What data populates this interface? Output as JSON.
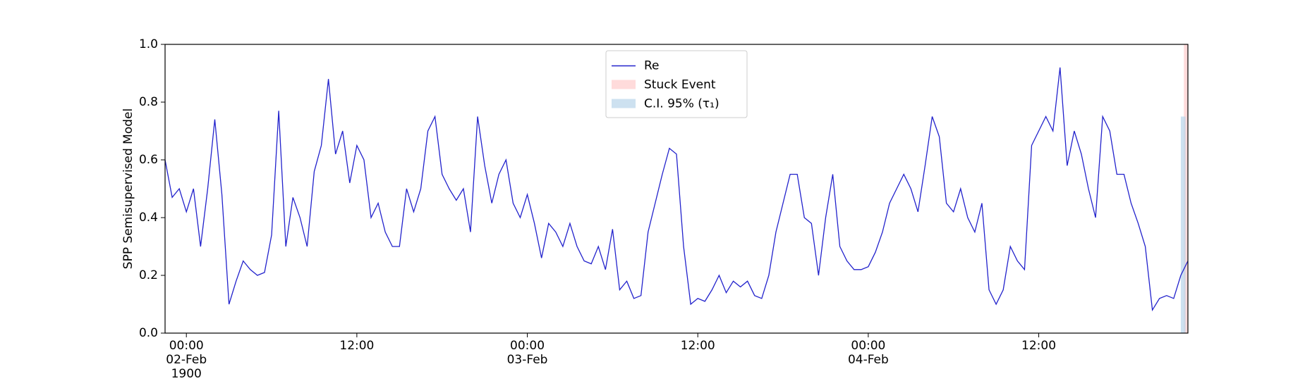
{
  "chart_data": {
    "type": "line",
    "ylabel": "SPP Semisupervised Model",
    "x": [
      "1900-02-01 22:30",
      "1900-02-01 23:00",
      "1900-02-01 23:30",
      "1900-02-02 00:00",
      "1900-02-02 00:30",
      "1900-02-02 01:00",
      "1900-02-02 01:30",
      "1900-02-02 02:00",
      "1900-02-02 02:30",
      "1900-02-02 03:00",
      "1900-02-02 03:30",
      "1900-02-02 04:00",
      "1900-02-02 04:30",
      "1900-02-02 05:00",
      "1900-02-02 05:30",
      "1900-02-02 06:00",
      "1900-02-02 06:30",
      "1900-02-02 07:00",
      "1900-02-02 07:30",
      "1900-02-02 08:00",
      "1900-02-02 08:30",
      "1900-02-02 09:00",
      "1900-02-02 09:30",
      "1900-02-02 10:00",
      "1900-02-02 10:30",
      "1900-02-02 11:00",
      "1900-02-02 11:30",
      "1900-02-02 12:00",
      "1900-02-02 12:30",
      "1900-02-02 13:00",
      "1900-02-02 13:30",
      "1900-02-02 14:00",
      "1900-02-02 14:30",
      "1900-02-02 15:00",
      "1900-02-02 15:30",
      "1900-02-02 16:00",
      "1900-02-02 16:30",
      "1900-02-02 17:00",
      "1900-02-02 17:30",
      "1900-02-02 18:00",
      "1900-02-02 18:30",
      "1900-02-02 19:00",
      "1900-02-02 19:30",
      "1900-02-02 20:00",
      "1900-02-02 20:30",
      "1900-02-02 21:00",
      "1900-02-02 21:30",
      "1900-02-02 22:00",
      "1900-02-02 22:30",
      "1900-02-02 23:00",
      "1900-02-02 23:30",
      "1900-02-03 00:00",
      "1900-02-03 00:30",
      "1900-02-03 01:00",
      "1900-02-03 01:30",
      "1900-02-03 02:00",
      "1900-02-03 02:30",
      "1900-02-03 03:00",
      "1900-02-03 03:30",
      "1900-02-03 04:00",
      "1900-02-03 04:30",
      "1900-02-03 05:00",
      "1900-02-03 05:30",
      "1900-02-03 06:00",
      "1900-02-03 06:30",
      "1900-02-03 07:00",
      "1900-02-03 07:30",
      "1900-02-03 08:00",
      "1900-02-03 08:30",
      "1900-02-03 09:00",
      "1900-02-03 09:30",
      "1900-02-03 10:00",
      "1900-02-03 10:30",
      "1900-02-03 11:00",
      "1900-02-03 11:30",
      "1900-02-03 12:00",
      "1900-02-03 12:30",
      "1900-02-03 13:00",
      "1900-02-03 13:30",
      "1900-02-03 14:00",
      "1900-02-03 14:30",
      "1900-02-03 15:00",
      "1900-02-03 15:30",
      "1900-02-03 16:00",
      "1900-02-03 16:30",
      "1900-02-03 17:00",
      "1900-02-03 17:30",
      "1900-02-03 18:00",
      "1900-02-03 18:30",
      "1900-02-03 19:00",
      "1900-02-03 19:30",
      "1900-02-03 20:00",
      "1900-02-03 20:30",
      "1900-02-03 21:00",
      "1900-02-03 21:30",
      "1900-02-03 22:00",
      "1900-02-03 22:30",
      "1900-02-03 23:00",
      "1900-02-03 23:30",
      "1900-02-04 00:00",
      "1900-02-04 00:30",
      "1900-02-04 01:00",
      "1900-02-04 01:30",
      "1900-02-04 02:00",
      "1900-02-04 02:30",
      "1900-02-04 03:00",
      "1900-02-04 03:30",
      "1900-02-04 04:00",
      "1900-02-04 04:30",
      "1900-02-04 05:00",
      "1900-02-04 05:30",
      "1900-02-04 06:00",
      "1900-02-04 06:30",
      "1900-02-04 07:00",
      "1900-02-04 07:30",
      "1900-02-04 08:00",
      "1900-02-04 08:30",
      "1900-02-04 09:00",
      "1900-02-04 09:30",
      "1900-02-04 10:00",
      "1900-02-04 10:30",
      "1900-02-04 11:00",
      "1900-02-04 11:30",
      "1900-02-04 12:00",
      "1900-02-04 12:30",
      "1900-02-04 13:00",
      "1900-02-04 13:30",
      "1900-02-04 14:00",
      "1900-02-04 14:30",
      "1900-02-04 15:00",
      "1900-02-04 15:30",
      "1900-02-04 16:00",
      "1900-02-04 16:30",
      "1900-02-04 17:00",
      "1900-02-04 17:30",
      "1900-02-04 18:00",
      "1900-02-04 18:30",
      "1900-02-04 19:00",
      "1900-02-04 19:30",
      "1900-02-04 20:00",
      "1900-02-04 20:30",
      "1900-02-04 21:00",
      "1900-02-04 21:30",
      "1900-02-04 22:00",
      "1900-02-04 22:30"
    ],
    "series": [
      {
        "name": "Re",
        "color": "#2222cc",
        "values": [
          0.6,
          0.47,
          0.5,
          0.42,
          0.5,
          0.3,
          0.5,
          0.74,
          0.48,
          0.1,
          0.18,
          0.25,
          0.22,
          0.2,
          0.21,
          0.34,
          0.77,
          0.3,
          0.47,
          0.4,
          0.3,
          0.56,
          0.65,
          0.88,
          0.62,
          0.7,
          0.52,
          0.65,
          0.6,
          0.4,
          0.45,
          0.35,
          0.3,
          0.3,
          0.5,
          0.42,
          0.5,
          0.7,
          0.75,
          0.55,
          0.5,
          0.46,
          0.5,
          0.35,
          0.75,
          0.58,
          0.45,
          0.55,
          0.6,
          0.45,
          0.4,
          0.48,
          0.38,
          0.26,
          0.38,
          0.35,
          0.3,
          0.38,
          0.3,
          0.25,
          0.24,
          0.3,
          0.22,
          0.36,
          0.15,
          0.18,
          0.12,
          0.13,
          0.35,
          0.45,
          0.55,
          0.64,
          0.62,
          0.3,
          0.1,
          0.12,
          0.11,
          0.15,
          0.2,
          0.14,
          0.18,
          0.16,
          0.18,
          0.13,
          0.12,
          0.2,
          0.35,
          0.45,
          0.55,
          0.55,
          0.4,
          0.38,
          0.2,
          0.4,
          0.55,
          0.3,
          0.25,
          0.22,
          0.22,
          0.23,
          0.28,
          0.35,
          0.45,
          0.5,
          0.55,
          0.5,
          0.42,
          0.58,
          0.75,
          0.68,
          0.45,
          0.42,
          0.5,
          0.4,
          0.35,
          0.45,
          0.15,
          0.1,
          0.15,
          0.3,
          0.25,
          0.22,
          0.65,
          0.7,
          0.75,
          0.7,
          0.92,
          0.58,
          0.7,
          0.62,
          0.5,
          0.4,
          0.75,
          0.7,
          0.55,
          0.55,
          0.45,
          0.38,
          0.3,
          0.08,
          0.12,
          0.13,
          0.12,
          0.2,
          0.25
        ]
      }
    ],
    "spans": [
      {
        "name": "Stuck Event",
        "color": "#ffcccc",
        "x": [
          "1900-02-04 22:13",
          "1900-02-04 22:30"
        ],
        "y": [
          0,
          1
        ]
      },
      {
        "name": "C.I. 95% (τ₁)",
        "color": "#b8d4ea",
        "x": [
          "1900-02-04 22:00",
          "1900-02-04 22:20"
        ],
        "y": [
          0,
          0.75
        ]
      }
    ],
    "xlim": [
      "1900-02-01 22:30",
      "1900-02-04 22:30"
    ],
    "xticks": [
      {
        "value": "1900-02-02 00:00",
        "label": "00:00\n02-Feb\n1900"
      },
      {
        "value": "1900-02-02 12:00",
        "label": "12:00"
      },
      {
        "value": "1900-02-03 00:00",
        "label": "00:00\n03-Feb"
      },
      {
        "value": "1900-02-03 12:00",
        "label": "12:00"
      },
      {
        "value": "1900-02-04 00:00",
        "label": "00:00\n04-Feb"
      },
      {
        "value": "1900-02-04 12:00",
        "label": "12:00"
      }
    ],
    "ylim": [
      0,
      1
    ],
    "yticks": [
      {
        "value": 0,
        "label": "0.0"
      },
      {
        "value": 0.2,
        "label": "0.2"
      },
      {
        "value": 0.4,
        "label": "0.4"
      },
      {
        "value": 0.6,
        "label": "0.6"
      },
      {
        "value": 0.8,
        "label": "0.8"
      },
      {
        "value": 1,
        "label": "1.0"
      }
    ],
    "legend": "upper center",
    "grid": false
  }
}
